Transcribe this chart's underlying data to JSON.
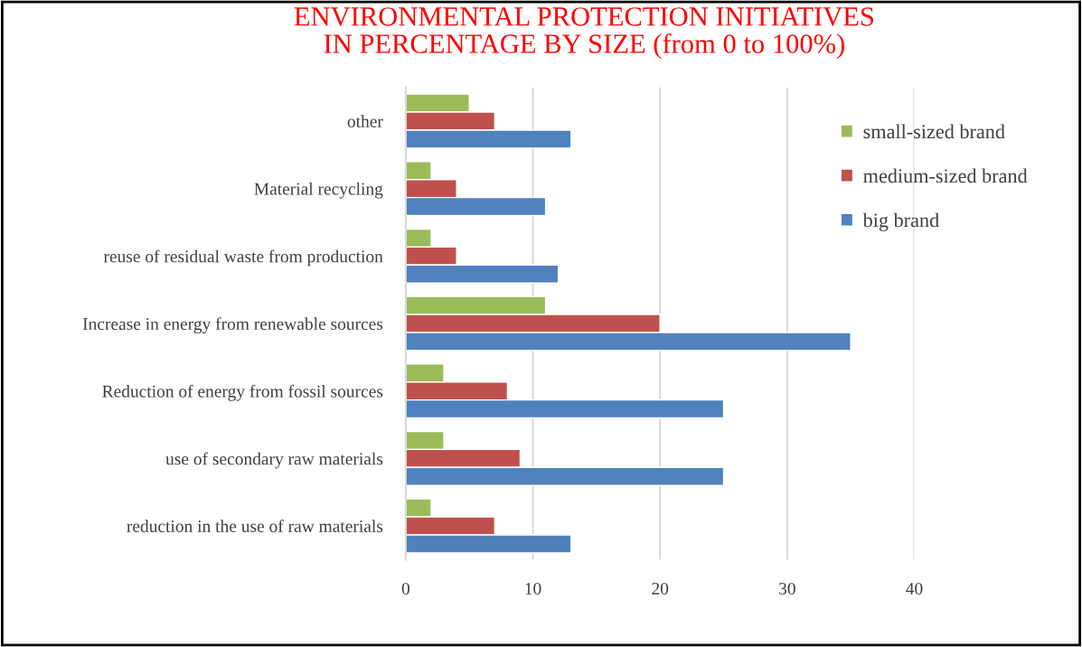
{
  "chart_data": {
    "type": "bar",
    "orientation": "horizontal",
    "title": "ENVIRONMENTAL PROTECTION INITIATIVES\nIN PERCENTAGE BY SIZE (from 0 to 100%)",
    "categories": [
      "other",
      "Material recycling",
      "reuse of residual waste from production",
      "Increase in energy from renewable sources",
      "Reduction of energy from fossil sources",
      "use of secondary raw materials",
      "reduction in the use of raw materials"
    ],
    "series": [
      {
        "name": "small-sized brand",
        "color": "#9bbb59",
        "values": [
          5,
          2,
          2,
          11,
          3,
          3,
          2
        ]
      },
      {
        "name": "medium-sized brand",
        "color": "#c0504d",
        "values": [
          7,
          4,
          4,
          20,
          8,
          9,
          7
        ]
      },
      {
        "name": "big brand",
        "color": "#4f81bd",
        "values": [
          13,
          11,
          12,
          35,
          25,
          25,
          13
        ]
      }
    ],
    "xlim": [
      0,
      40
    ],
    "xticks": [
      0,
      10,
      20,
      30,
      40
    ],
    "grid": "x",
    "legend": "top right"
  }
}
